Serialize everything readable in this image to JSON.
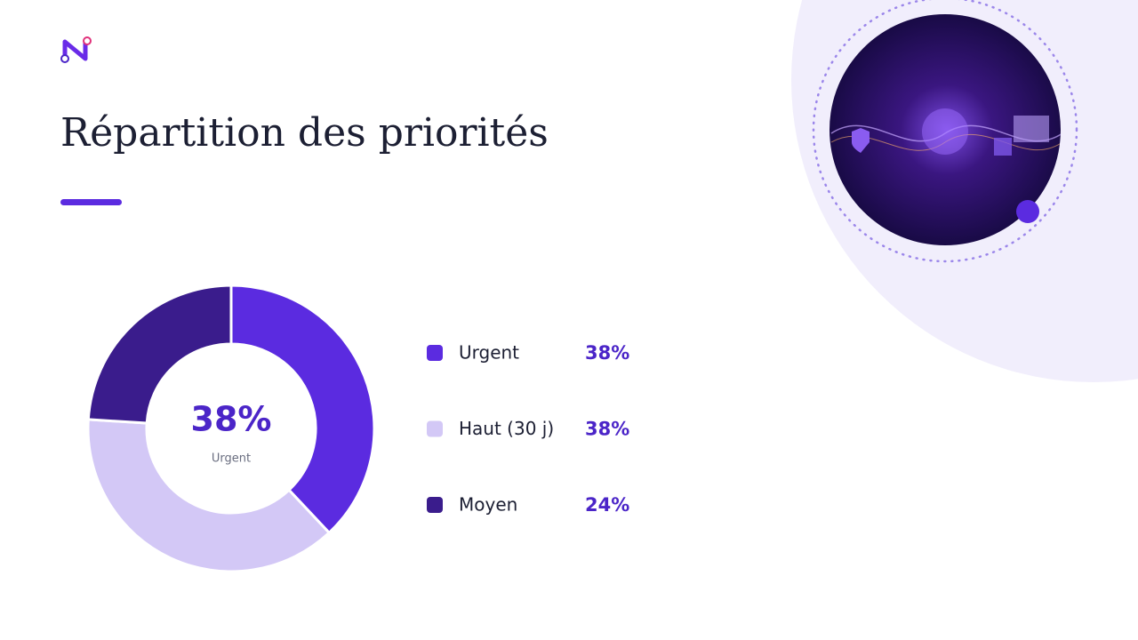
{
  "chart_data": {
    "type": "donut",
    "title": "Répartition des priorités",
    "categories": [
      "Urgent",
      "Haut (30 j)",
      "Moyen"
    ],
    "values": [
      38,
      38,
      24
    ],
    "value_labels": [
      "38%",
      "38%",
      "24%"
    ],
    "colors": [
      "#5b2be0",
      "#d3c8f6",
      "#3a1c8c"
    ]
  }
}
